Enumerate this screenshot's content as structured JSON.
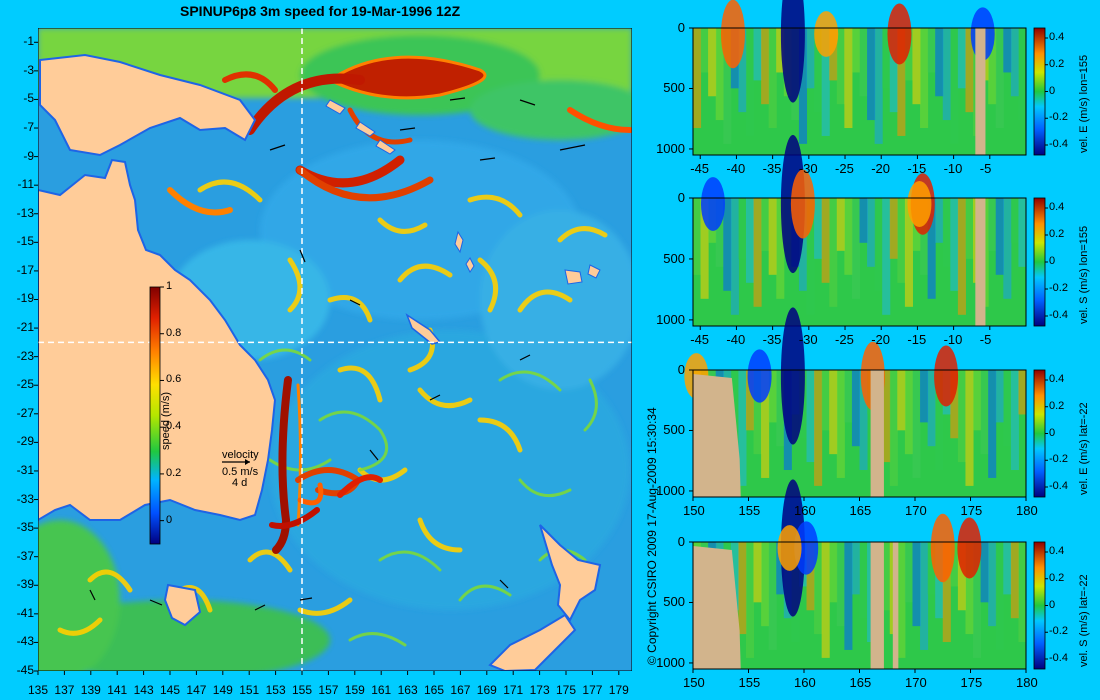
{
  "title": "SPINUP6p8 3m speed for 19-Mar-1996 12Z",
  "copyright": "© Copyright CSIRO 2009   17-Aug-2009 15:30:34",
  "colors": {
    "background": "#00ccff",
    "land": "#ffcc99",
    "section_land": "#d2b48c",
    "ocean_low": "#1e64e6",
    "ocean_high": "#b40000"
  },
  "chart_data": [
    {
      "type": "heatmap",
      "id": "map",
      "title": "SPINUP6p8 3m speed for 19-Mar-1996 12Z",
      "xlabel": "",
      "ylabel": "",
      "x_ticks": [
        "135",
        "137",
        "139",
        "141",
        "143",
        "145",
        "147",
        "149",
        "151",
        "153",
        "155",
        "157",
        "159",
        "161",
        "163",
        "165",
        "167",
        "169",
        "171",
        "173",
        "175",
        "177",
        "179"
      ],
      "y_ticks": [
        "-1",
        "-3",
        "-5",
        "-7",
        "-9",
        "-11",
        "-13",
        "-15",
        "-17",
        "-19",
        "-21",
        "-23",
        "-25",
        "-27",
        "-29",
        "-31",
        "-33",
        "-35",
        "-37",
        "-39",
        "-41",
        "-43",
        "-45"
      ],
      "xlim": [
        135,
        180
      ],
      "ylim": [
        -45,
        0
      ],
      "section_lon": 155,
      "section_lat": -22,
      "colorbar": {
        "label": "speed (m/s)",
        "ticks": [
          "0",
          "0.2",
          "0.4",
          "0.6",
          "0.8",
          "1"
        ],
        "range": [
          -0.1,
          1
        ]
      },
      "vector_legend": {
        "title": "velocity",
        "speed": "0.5 m/s",
        "duration": "4 d"
      }
    },
    {
      "type": "heatmap",
      "id": "sec1",
      "x_ticks": [
        "-45",
        "-40",
        "-35",
        "-30",
        "-25",
        "-20",
        "-15",
        "-10",
        "-5"
      ],
      "y_ticks": [
        "0",
        "500",
        "1000"
      ],
      "xlim": [
        -46,
        0
      ],
      "ylim": [
        1050,
        0
      ],
      "colorbar_label": "vel. E (m/s) lon=155",
      "colorbar_ticks": [
        "0.4",
        "0.2",
        "0",
        "-0.2",
        "-0.4"
      ]
    },
    {
      "type": "heatmap",
      "id": "sec2",
      "x_ticks": [
        "-45",
        "-40",
        "-35",
        "-30",
        "-25",
        "-20",
        "-15",
        "-10",
        "-5"
      ],
      "y_ticks": [
        "0",
        "500",
        "1000"
      ],
      "xlim": [
        -46,
        0
      ],
      "ylim": [
        1050,
        0
      ],
      "colorbar_label": "vel. S (m/s) lon=155",
      "colorbar_ticks": [
        "0.4",
        "0.2",
        "0",
        "-0.2",
        "-0.4"
      ]
    },
    {
      "type": "heatmap",
      "id": "sec3",
      "x_ticks": [
        "150",
        "155",
        "160",
        "165",
        "170",
        "175",
        "180"
      ],
      "y_ticks": [
        "0",
        "500",
        "1000"
      ],
      "xlim": [
        150,
        180
      ],
      "ylim": [
        1050,
        0
      ],
      "colorbar_label": "vel. E (m/s) lat=-22",
      "colorbar_ticks": [
        "0.4",
        "0.2",
        "0",
        "-0.2",
        "-0.4"
      ]
    },
    {
      "type": "heatmap",
      "id": "sec4",
      "x_ticks": [
        "150",
        "155",
        "160",
        "165",
        "170",
        "175",
        "180"
      ],
      "y_ticks": [
        "0",
        "500",
        "1000"
      ],
      "xlim": [
        150,
        180
      ],
      "ylim": [
        1050,
        0
      ],
      "colorbar_label": "vel. S (m/s) lat=-22",
      "colorbar_ticks": [
        "0.4",
        "0.2",
        "0",
        "-0.2",
        "-0.4"
      ]
    }
  ]
}
